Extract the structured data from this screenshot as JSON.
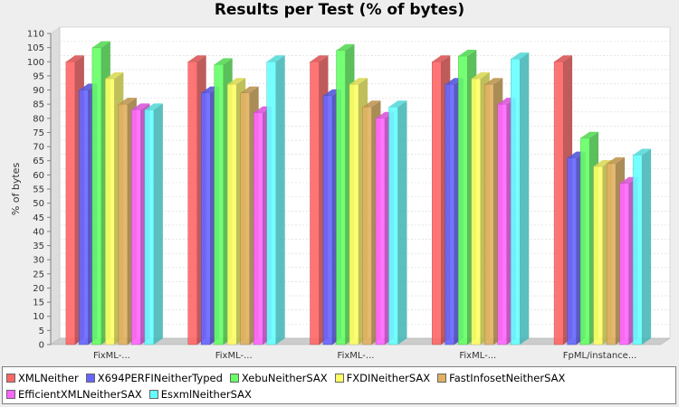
{
  "chart_data": {
    "type": "bar",
    "title": "Results per Test (% of bytes)",
    "ylabel": "% of bytes",
    "xlabel": "",
    "ylim": [
      0,
      110
    ],
    "yticks": [
      0,
      5,
      10,
      15,
      20,
      25,
      30,
      35,
      40,
      45,
      50,
      55,
      60,
      65,
      70,
      75,
      80,
      85,
      90,
      95,
      100,
      105,
      110
    ],
    "categories": [
      "FixML-...",
      "FixML-...",
      "FixML-...",
      "FixML-...",
      "FpML/instance..."
    ],
    "series": [
      {
        "name": "XMLNeither",
        "color": "#ff6666",
        "values": [
          100,
          100,
          100,
          100,
          100
        ]
      },
      {
        "name": "X694PERFINeitherTyped",
        "color": "#6666ff",
        "values": [
          90,
          89,
          88,
          92,
          66
        ]
      },
      {
        "name": "XebuNeitherSAX",
        "color": "#66ff66",
        "values": [
          105,
          99,
          104,
          102,
          73
        ]
      },
      {
        "name": "FXDINeitherSAX",
        "color": "#ffff66",
        "values": [
          94,
          92,
          92,
          94,
          63
        ]
      },
      {
        "name": "FastInfosetNeitherSAX",
        "color": "#e0b060",
        "values": [
          85,
          89,
          84,
          92,
          64
        ]
      },
      {
        "name": "EfficientXMLNeitherSAX",
        "color": "#ff66ff",
        "values": [
          83,
          82,
          80,
          85,
          57
        ]
      },
      {
        "name": "EsxmlNeitherSAX",
        "color": "#66ffff",
        "values": [
          83,
          100,
          84,
          101,
          67
        ]
      }
    ],
    "grid": true,
    "legend_position": "bottom"
  }
}
